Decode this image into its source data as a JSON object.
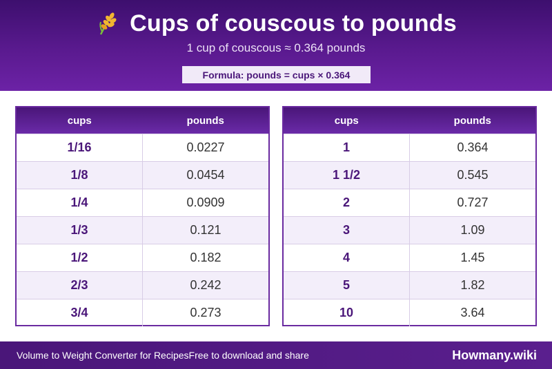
{
  "header": {
    "title": "Cups of couscous to pounds",
    "subtitle": "1 cup of couscous ≈ 0.364 pounds",
    "formula": "Formula: pounds = cups × 0.364",
    "icon": "wheat-icon"
  },
  "tables": {
    "left": {
      "col1": "cups",
      "col2": "pounds",
      "rows": [
        {
          "cups": "1/16",
          "pounds": "0.0227"
        },
        {
          "cups": "1/8",
          "pounds": "0.0454"
        },
        {
          "cups": "1/4",
          "pounds": "0.0909"
        },
        {
          "cups": "1/3",
          "pounds": "0.121"
        },
        {
          "cups": "1/2",
          "pounds": "0.182"
        },
        {
          "cups": "2/3",
          "pounds": "0.242"
        },
        {
          "cups": "3/4",
          "pounds": "0.273"
        }
      ]
    },
    "right": {
      "col1": "cups",
      "col2": "pounds",
      "rows": [
        {
          "cups": "1",
          "pounds": "0.364"
        },
        {
          "cups": "1 1/2",
          "pounds": "0.545"
        },
        {
          "cups": "2",
          "pounds": "0.727"
        },
        {
          "cups": "3",
          "pounds": "1.09"
        },
        {
          "cups": "4",
          "pounds": "1.45"
        },
        {
          "cups": "5",
          "pounds": "1.82"
        },
        {
          "cups": "10",
          "pounds": "3.64"
        }
      ]
    }
  },
  "footer": {
    "left_text": "Volume to Weight Converter for Recipes",
    "middle_text": "Free to download and share",
    "brand": "Howmany.wiki"
  },
  "colors": {
    "header_dark": "#3d0f6e",
    "header_light": "#6c22a6",
    "accent_text": "#4a1679",
    "row_alt": "#f3eefa"
  }
}
